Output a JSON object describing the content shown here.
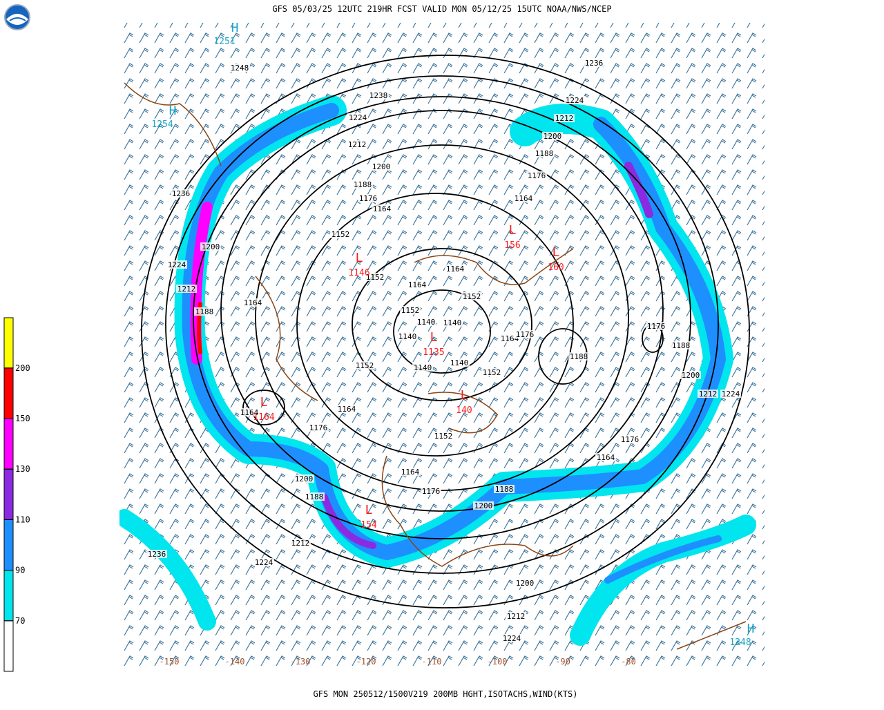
{
  "header": {
    "title": "GFS 05/03/25 12UTC 219HR FCST VALID MON 05/12/25 15UTC NOAA/NWS/NCEP"
  },
  "footer": {
    "text": "GFS MON 250512/1500V219 200MB HGHT,ISOTACHS,WIND(KTS)"
  },
  "isotach_legend": {
    "levels": [
      70,
      90,
      110,
      130,
      150,
      200
    ],
    "colors": [
      "#ffffff",
      "#00e5ee",
      "#1e8fff",
      "#8a2be2",
      "#ff00ff",
      "#ff0000",
      "#ffff00"
    ]
  },
  "lows": [
    {
      "symbol": "L",
      "value": 1146
    },
    {
      "symbol": "L",
      "value": 156
    },
    {
      "symbol": "L",
      "value": 160
    },
    {
      "symbol": "L",
      "value": 1135
    },
    {
      "symbol": "L",
      "value": 1164
    },
    {
      "symbol": "L",
      "value": 140
    },
    {
      "symbol": "L",
      "value": 154
    }
  ],
  "highs": [
    {
      "symbol": "H",
      "value": 1251
    },
    {
      "symbol": "H",
      "value": 1254
    },
    {
      "symbol": "H",
      "value": 1248
    }
  ],
  "height_labels": [
    1248,
    1238,
    1236,
    1224,
    1224,
    1212,
    1212,
    1200,
    1200,
    1188,
    1188,
    1176,
    1176,
    1164,
    1164,
    1152,
    1152,
    1164,
    1164,
    1152,
    1152,
    1140,
    1140,
    1140,
    1140,
    1140,
    1152,
    1152,
    1164,
    1176,
    1188,
    1176,
    1188,
    1200,
    1212,
    1224,
    1236,
    1200,
    1224,
    1212,
    1188,
    1164,
    1164,
    1164,
    1176,
    1152,
    1176,
    1164,
    1164,
    1176,
    1188,
    1200,
    1200,
    1188,
    1212,
    1224,
    1236,
    1200,
    1212,
    1224
  ],
  "longitude_labels": [
    -150,
    -140,
    -130,
    -120,
    -110,
    -100,
    -90,
    -80
  ]
}
